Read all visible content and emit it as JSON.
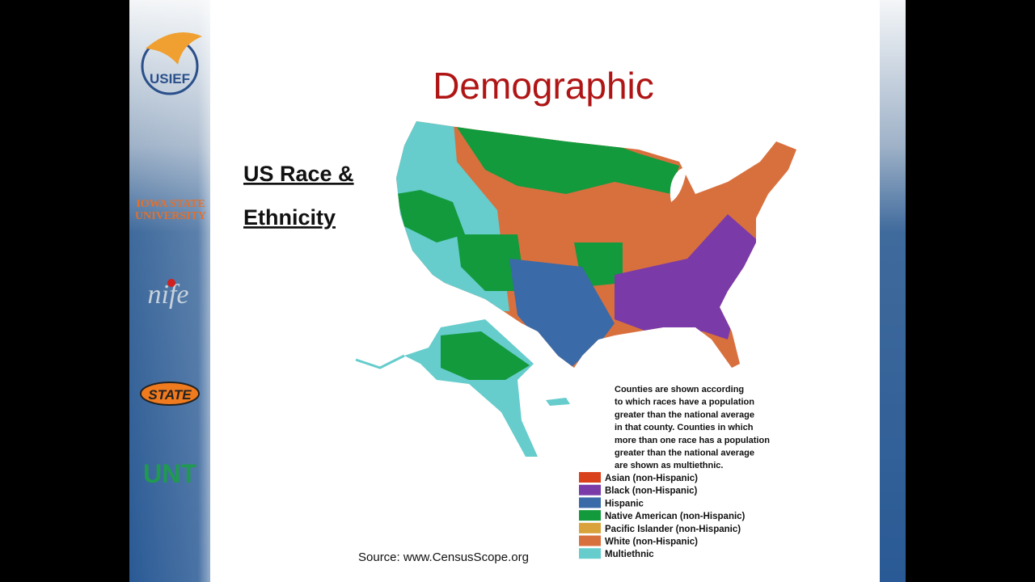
{
  "slide": {
    "title": "Demographic",
    "heading_lines": [
      "US Race &",
      "Ethnicity"
    ],
    "logos": [
      "USIEF",
      "IOWA STATE",
      "UNIVERSITY",
      "nife",
      "STATE",
      "UNT"
    ],
    "map_note_lines": [
      "Counties are shown according",
      "to which races have a population",
      "greater than the national average",
      "in that county.  Counties in which",
      "more than one race has a population",
      "greater than the national average",
      "are shown as multiethnic."
    ],
    "legend": [
      {
        "label": "Asian (non-Hispanic)",
        "color": "#d9401c"
      },
      {
        "label": "Black (non-Hispanic)",
        "color": "#7a3aa8"
      },
      {
        "label": "Hispanic",
        "color": "#3a6aa8"
      },
      {
        "label": "Native American (non-Hispanic)",
        "color": "#129a3c"
      },
      {
        "label": "Pacific Islander (non-Hispanic)",
        "color": "#d9a23a"
      },
      {
        "label": "White (non-Hispanic)",
        "color": "#d8703e"
      },
      {
        "label": "Multiethnic",
        "color": "#66cccc"
      }
    ],
    "source": "Source: www.CensusScope.org"
  }
}
